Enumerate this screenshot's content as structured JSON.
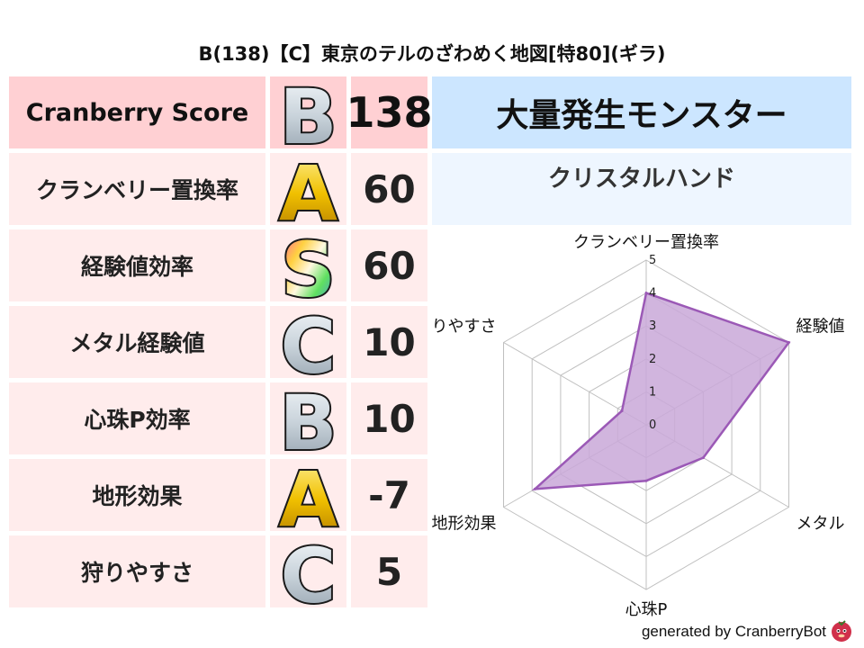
{
  "title": "B(138)【C】東京のテルのざわめく地図[特80](ギラ)",
  "score": {
    "label": "Cranberry Score",
    "grade": "B",
    "value": "138"
  },
  "rows": [
    {
      "label": "クランベリー置換率",
      "grade": "A",
      "value": "60"
    },
    {
      "label": "経験値効率",
      "grade": "S",
      "value": "60"
    },
    {
      "label": "メタル経験値",
      "grade": "C",
      "value": "10"
    },
    {
      "label": "心珠P効率",
      "grade": "B",
      "value": "10"
    },
    {
      "label": "地形効果",
      "grade": "A",
      "value": "-7"
    },
    {
      "label": "狩りやすさ",
      "grade": "C",
      "value": "5"
    }
  ],
  "monster": {
    "heading": "大量発生モンスター",
    "name": "クリスタルハンド"
  },
  "footer": {
    "text": "generated by CranberryBot",
    "icon": "cranberry-bot-icon"
  },
  "colors": {
    "header_bg": "#ffd0d3",
    "row_bg": "#ffecec",
    "monster_bg": "#cce6ff",
    "monster_name_bg": "#eef6ff",
    "radar_fill": "#c9a8d8",
    "radar_line": "#9b59b6"
  },
  "chart_data": {
    "type": "radar",
    "axes": [
      "クランベリー置換率",
      "経験値",
      "メタル",
      "心珠P",
      "地形効果",
      "狩りやすさ"
    ],
    "values": [
      4.0,
      5.0,
      2.0,
      1.7,
      3.9,
      0.85
    ],
    "rlim": [
      0,
      5
    ],
    "ticks": [
      "0",
      "1",
      "2",
      "3",
      "4",
      "5"
    ],
    "grid": true
  }
}
